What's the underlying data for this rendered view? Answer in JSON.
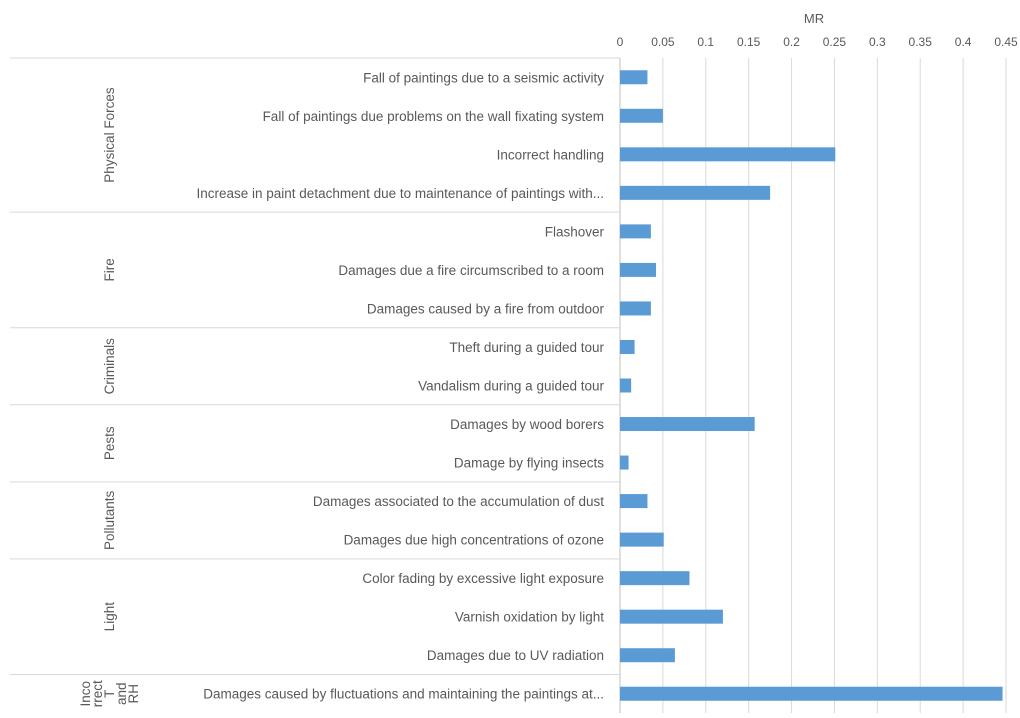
{
  "chart_data": {
    "type": "bar",
    "orientation": "horizontal",
    "xlabel": "MR",
    "xlim": [
      0,
      0.45
    ],
    "xticks": [
      0,
      0.05,
      0.1,
      0.15,
      0.2,
      0.25,
      0.3,
      0.35,
      0.4,
      0.45
    ],
    "xtick_labels": [
      "0",
      "0.05",
      "0.1",
      "0.15",
      "0.2",
      "0.25",
      "0.3",
      "0.35",
      "0.4",
      "0.45"
    ],
    "x_axis_position": "top",
    "grid": true,
    "bar_color": "#5b9bd5",
    "groups": [
      {
        "label": "Physical Forces",
        "label_lines": [
          "Physical Forces"
        ],
        "items": [
          {
            "label": "Fall of paintings due to a seismic activity",
            "value": 0.032
          },
          {
            "label": "Fall of paintings due problems on the wall fixating system",
            "value": 0.05
          },
          {
            "label": "Incorrect handling",
            "value": 0.251
          },
          {
            "label": "Increase in paint detachment due to maintenance of paintings with...",
            "value": 0.175
          }
        ]
      },
      {
        "label": "Fire",
        "label_lines": [
          "Fire"
        ],
        "items": [
          {
            "label": "Flashover",
            "value": 0.036
          },
          {
            "label": "Damages due a fire circumscribed to a room",
            "value": 0.042
          },
          {
            "label": "Damages caused by a fire from outdoor",
            "value": 0.036
          }
        ]
      },
      {
        "label": "Criminals",
        "label_lines": [
          "Criminals"
        ],
        "items": [
          {
            "label": "Theft during a guided tour",
            "value": 0.017
          },
          {
            "label": "Vandalism during a guided tour",
            "value": 0.013
          }
        ]
      },
      {
        "label": "Pests",
        "label_lines": [
          "Pests"
        ],
        "items": [
          {
            "label": "Damages by wood borers",
            "value": 0.157
          },
          {
            "label": "Damage by flying insects",
            "value": 0.01
          }
        ]
      },
      {
        "label": "Pollutants",
        "label_lines": [
          "Pollutants"
        ],
        "items": [
          {
            "label": "Damages associated to the accumulation of dust",
            "value": 0.032
          },
          {
            "label": "Damages due high concentrations of ozone",
            "value": 0.051
          }
        ]
      },
      {
        "label": "Light",
        "label_lines": [
          "Light"
        ],
        "items": [
          {
            "label": "Color fading by excessive light exposure",
            "value": 0.081
          },
          {
            "label": "Varnish oxidation by light",
            "value": 0.12
          },
          {
            "label": "Damages due to UV radiation",
            "value": 0.064
          }
        ]
      },
      {
        "label": "Incorrect T and RH",
        "label_lines": [
          "Inco",
          "rrect",
          "T",
          "and",
          "RH"
        ],
        "items": [
          {
            "label": "Damages caused by fluctuations and maintaining the paintings at...",
            "value": 0.446
          }
        ]
      }
    ]
  }
}
